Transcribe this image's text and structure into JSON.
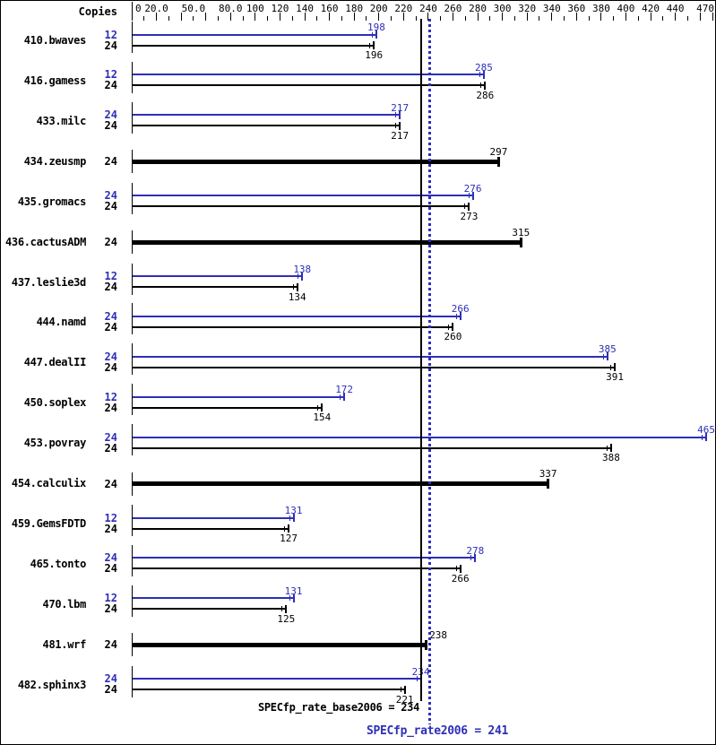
{
  "colors": {
    "peak_blue": "#2e2eb8",
    "base_black": "#000000",
    "background": "#ffffff"
  },
  "chart_data": {
    "type": "bar",
    "orientation": "horizontal",
    "copies_header": "Copies",
    "value_axis": {
      "min": 0,
      "max": 470,
      "minor_step": 10,
      "major_step": 20,
      "tick_labels": [
        {
          "text": "0",
          "value": 0
        },
        {
          "text": "20.0",
          "value": 20
        },
        {
          "text": "50.0",
          "value": 50
        },
        {
          "text": "80.0",
          "value": 80
        },
        {
          "text": "100",
          "value": 100
        },
        {
          "text": "120",
          "value": 120
        },
        {
          "text": "140",
          "value": 140
        },
        {
          "text": "160",
          "value": 160
        },
        {
          "text": "180",
          "value": 180
        },
        {
          "text": "200",
          "value": 200
        },
        {
          "text": "220",
          "value": 220
        },
        {
          "text": "240",
          "value": 240
        },
        {
          "text": "260",
          "value": 260
        },
        {
          "text": "280",
          "value": 280
        },
        {
          "text": "300",
          "value": 300
        },
        {
          "text": "320",
          "value": 320
        },
        {
          "text": "340",
          "value": 340
        },
        {
          "text": "360",
          "value": 360
        },
        {
          "text": "380",
          "value": 380
        },
        {
          "text": "400",
          "value": 400
        },
        {
          "text": "420",
          "value": 420
        },
        {
          "text": "440",
          "value": 440
        },
        {
          "text": "470",
          "value": 470
        }
      ]
    },
    "groups": [
      {
        "name": "410.bwaves",
        "rows": [
          {
            "copies": 12,
            "series": "peak",
            "value": 198
          },
          {
            "copies": 24,
            "series": "base",
            "value": 196
          }
        ]
      },
      {
        "name": "416.gamess",
        "rows": [
          {
            "copies": 12,
            "series": "peak",
            "value": 285
          },
          {
            "copies": 24,
            "series": "base",
            "value": 286
          }
        ]
      },
      {
        "name": "433.milc",
        "rows": [
          {
            "copies": 24,
            "series": "peak",
            "value": 217
          },
          {
            "copies": 24,
            "series": "base",
            "value": 217
          }
        ]
      },
      {
        "name": "434.zeusmp",
        "rows": [
          {
            "copies": 24,
            "series": "both",
            "value": 297
          }
        ]
      },
      {
        "name": "435.gromacs",
        "rows": [
          {
            "copies": 24,
            "series": "peak",
            "value": 276
          },
          {
            "copies": 24,
            "series": "base",
            "value": 273
          }
        ]
      },
      {
        "name": "436.cactusADM",
        "rows": [
          {
            "copies": 24,
            "series": "both",
            "value": 315
          }
        ]
      },
      {
        "name": "437.leslie3d",
        "rows": [
          {
            "copies": 12,
            "series": "peak",
            "value": 138
          },
          {
            "copies": 24,
            "series": "base",
            "value": 134
          }
        ]
      },
      {
        "name": "444.namd",
        "rows": [
          {
            "copies": 24,
            "series": "peak",
            "value": 266
          },
          {
            "copies": 24,
            "series": "base",
            "value": 260
          }
        ]
      },
      {
        "name": "447.dealII",
        "rows": [
          {
            "copies": 24,
            "series": "peak",
            "value": 385
          },
          {
            "copies": 24,
            "series": "base",
            "value": 391
          }
        ]
      },
      {
        "name": "450.soplex",
        "rows": [
          {
            "copies": 12,
            "series": "peak",
            "value": 172
          },
          {
            "copies": 24,
            "series": "base",
            "value": 154
          }
        ]
      },
      {
        "name": "453.povray",
        "rows": [
          {
            "copies": 24,
            "series": "peak",
            "value": 465
          },
          {
            "copies": 24,
            "series": "base",
            "value": 388
          }
        ]
      },
      {
        "name": "454.calculix",
        "rows": [
          {
            "copies": 24,
            "series": "both",
            "value": 337
          }
        ]
      },
      {
        "name": "459.GemsFDTD",
        "rows": [
          {
            "copies": 12,
            "series": "peak",
            "value": 131
          },
          {
            "copies": 24,
            "series": "base",
            "value": 127
          }
        ]
      },
      {
        "name": "465.tonto",
        "rows": [
          {
            "copies": 24,
            "series": "peak",
            "value": 278
          },
          {
            "copies": 24,
            "series": "base",
            "value": 266
          }
        ]
      },
      {
        "name": "470.lbm",
        "rows": [
          {
            "copies": 12,
            "series": "peak",
            "value": 131
          },
          {
            "copies": 24,
            "series": "base",
            "value": 125
          }
        ]
      },
      {
        "name": "481.wrf",
        "rows": [
          {
            "copies": 24,
            "series": "both",
            "value": 238,
            "label_dx": 14
          }
        ]
      },
      {
        "name": "482.sphinx3",
        "rows": [
          {
            "copies": 24,
            "series": "peak",
            "value": 234
          },
          {
            "copies": 24,
            "series": "base",
            "value": 221
          }
        ]
      }
    ],
    "summary": {
      "base": {
        "text": "SPECfp_rate_base2006 = 234",
        "value": 234
      },
      "peak": {
        "text": "SPECfp_rate2006 = 241",
        "value": 241
      }
    }
  }
}
